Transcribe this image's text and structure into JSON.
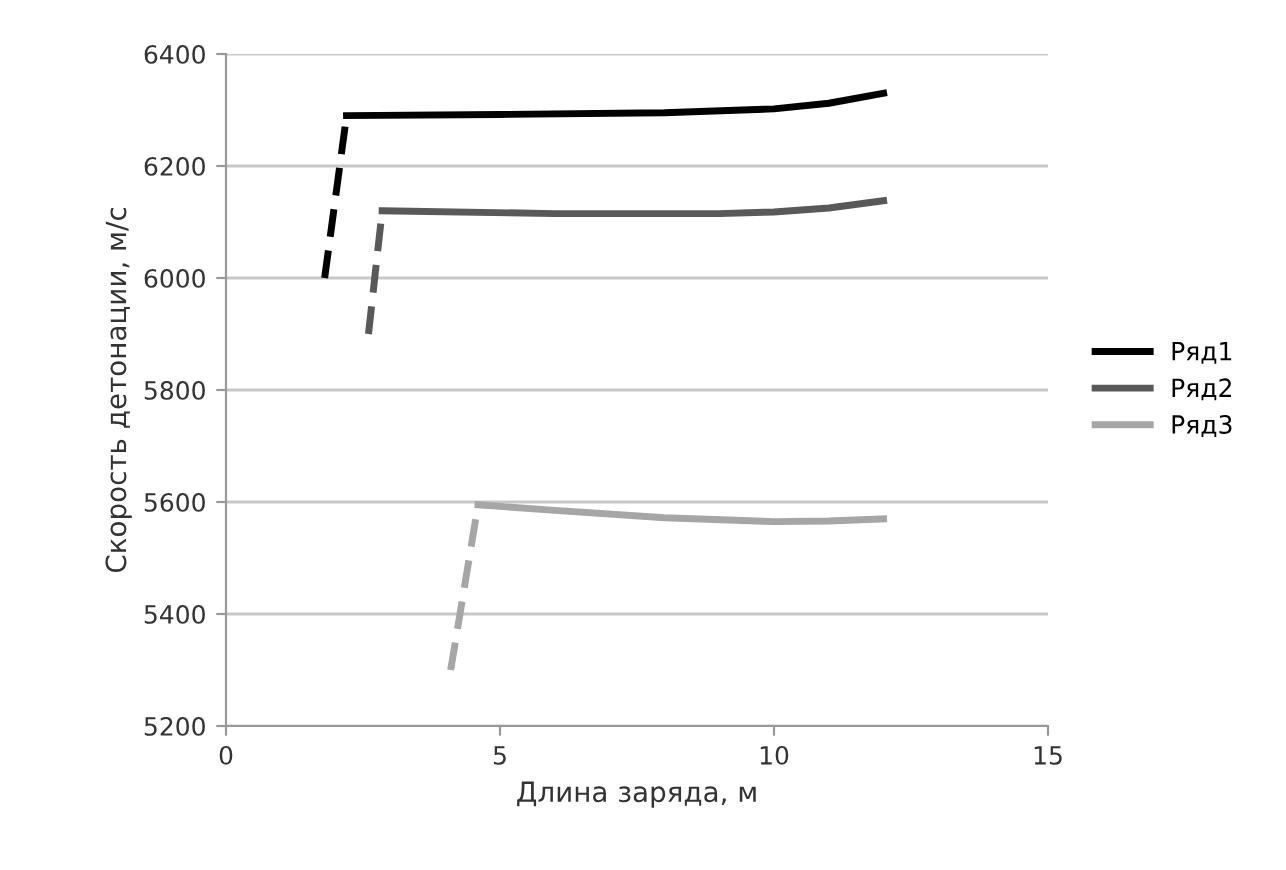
{
  "chart_data": {
    "type": "line",
    "xlabel": "Длина заряда, м",
    "ylabel": "Скорость детонации, м/с",
    "xlim": [
      0,
      15
    ],
    "xticks": [
      0,
      5,
      10,
      15
    ],
    "ylim": [
      5200,
      6400
    ],
    "yticks": [
      5200,
      5400,
      5600,
      5800,
      6000,
      6200,
      6400
    ],
    "grid": "y",
    "legend": "right",
    "marker": "none",
    "series": [
      {
        "name": "Ряд1",
        "color": "#000000",
        "x": [
          2.2,
          5,
          8,
          10,
          11,
          12
        ],
        "values": [
          6290,
          6292,
          6295,
          6302,
          6312,
          6330
        ]
      },
      {
        "name": "Ряд2",
        "color": "#595959",
        "x": [
          2.85,
          6,
          9,
          10,
          11,
          12
        ],
        "values": [
          6120,
          6115,
          6115,
          6118,
          6125,
          6138
        ]
      },
      {
        "name": "Ряд3",
        "color": "#a6a6a6",
        "x": [
          4.6,
          6,
          8,
          10,
          11,
          12
        ],
        "values": [
          5595,
          5585,
          5572,
          5565,
          5566,
          5570
        ]
      },
      {
        "color": "#000000",
        "line_style": "dashed",
        "x": [
          1.8,
          2.2
        ],
        "values": [
          6000,
          6290
        ]
      },
      {
        "color": "#595959",
        "line_style": "dashed",
        "x": [
          2.6,
          2.85
        ],
        "values": [
          5900,
          6120
        ]
      },
      {
        "color": "#a6a6a6",
        "line_style": "dashed",
        "x": [
          4.1,
          4.6
        ],
        "values": [
          5300,
          5595
        ]
      }
    ]
  }
}
